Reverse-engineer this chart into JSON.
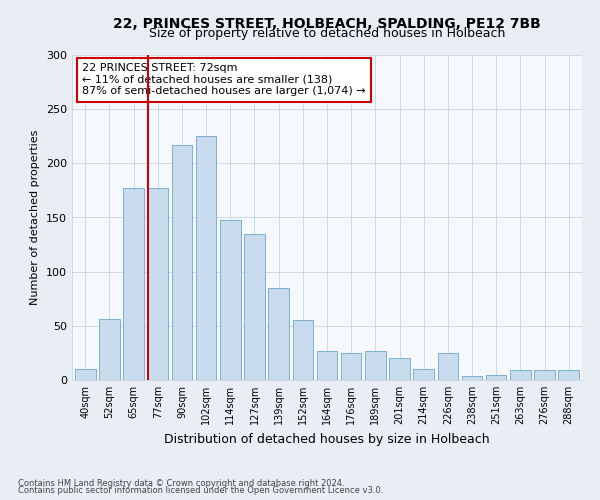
{
  "title1": "22, PRINCES STREET, HOLBEACH, SPALDING, PE12 7BB",
  "title2": "Size of property relative to detached houses in Holbeach",
  "xlabel": "Distribution of detached houses by size in Holbeach",
  "ylabel": "Number of detached properties",
  "categories": [
    "40sqm",
    "52sqm",
    "65sqm",
    "77sqm",
    "90sqm",
    "102sqm",
    "114sqm",
    "127sqm",
    "139sqm",
    "152sqm",
    "164sqm",
    "176sqm",
    "189sqm",
    "201sqm",
    "214sqm",
    "226sqm",
    "238sqm",
    "251sqm",
    "263sqm",
    "276sqm",
    "288sqm"
  ],
  "bar_heights": [
    10,
    56,
    177,
    177,
    217,
    225,
    148,
    135,
    85,
    55,
    27,
    25,
    27,
    20,
    10,
    25,
    4,
    5,
    9,
    9,
    9
  ],
  "bar_color": "#c9dcee",
  "bar_edge_color": "#7aafd4",
  "vline_color": "#cc0000",
  "vline_pos": 2.575,
  "annotation_text": "22 PRINCES STREET: 72sqm\n← 11% of detached houses are smaller (138)\n87% of semi-detached houses are larger (1,074) →",
  "annotation_box_facecolor": "#ffffff",
  "annotation_box_edgecolor": "#cc0000",
  "ylim": [
    0,
    300
  ],
  "yticks": [
    0,
    50,
    100,
    150,
    200,
    250,
    300
  ],
  "footer1": "Contains HM Land Registry data © Crown copyright and database right 2024.",
  "footer2": "Contains public sector information licensed under the Open Government Licence v3.0.",
  "bg_color": "#e8eef4",
  "plot_bg_color": "#f5f8fc",
  "grid_color": "#c8d4e0",
  "title1_fontsize": 10,
  "title2_fontsize": 9,
  "ylabel_fontsize": 8,
  "xlabel_fontsize": 9,
  "tick_fontsize": 7,
  "annotation_fontsize": 8,
  "footer_fontsize": 6
}
